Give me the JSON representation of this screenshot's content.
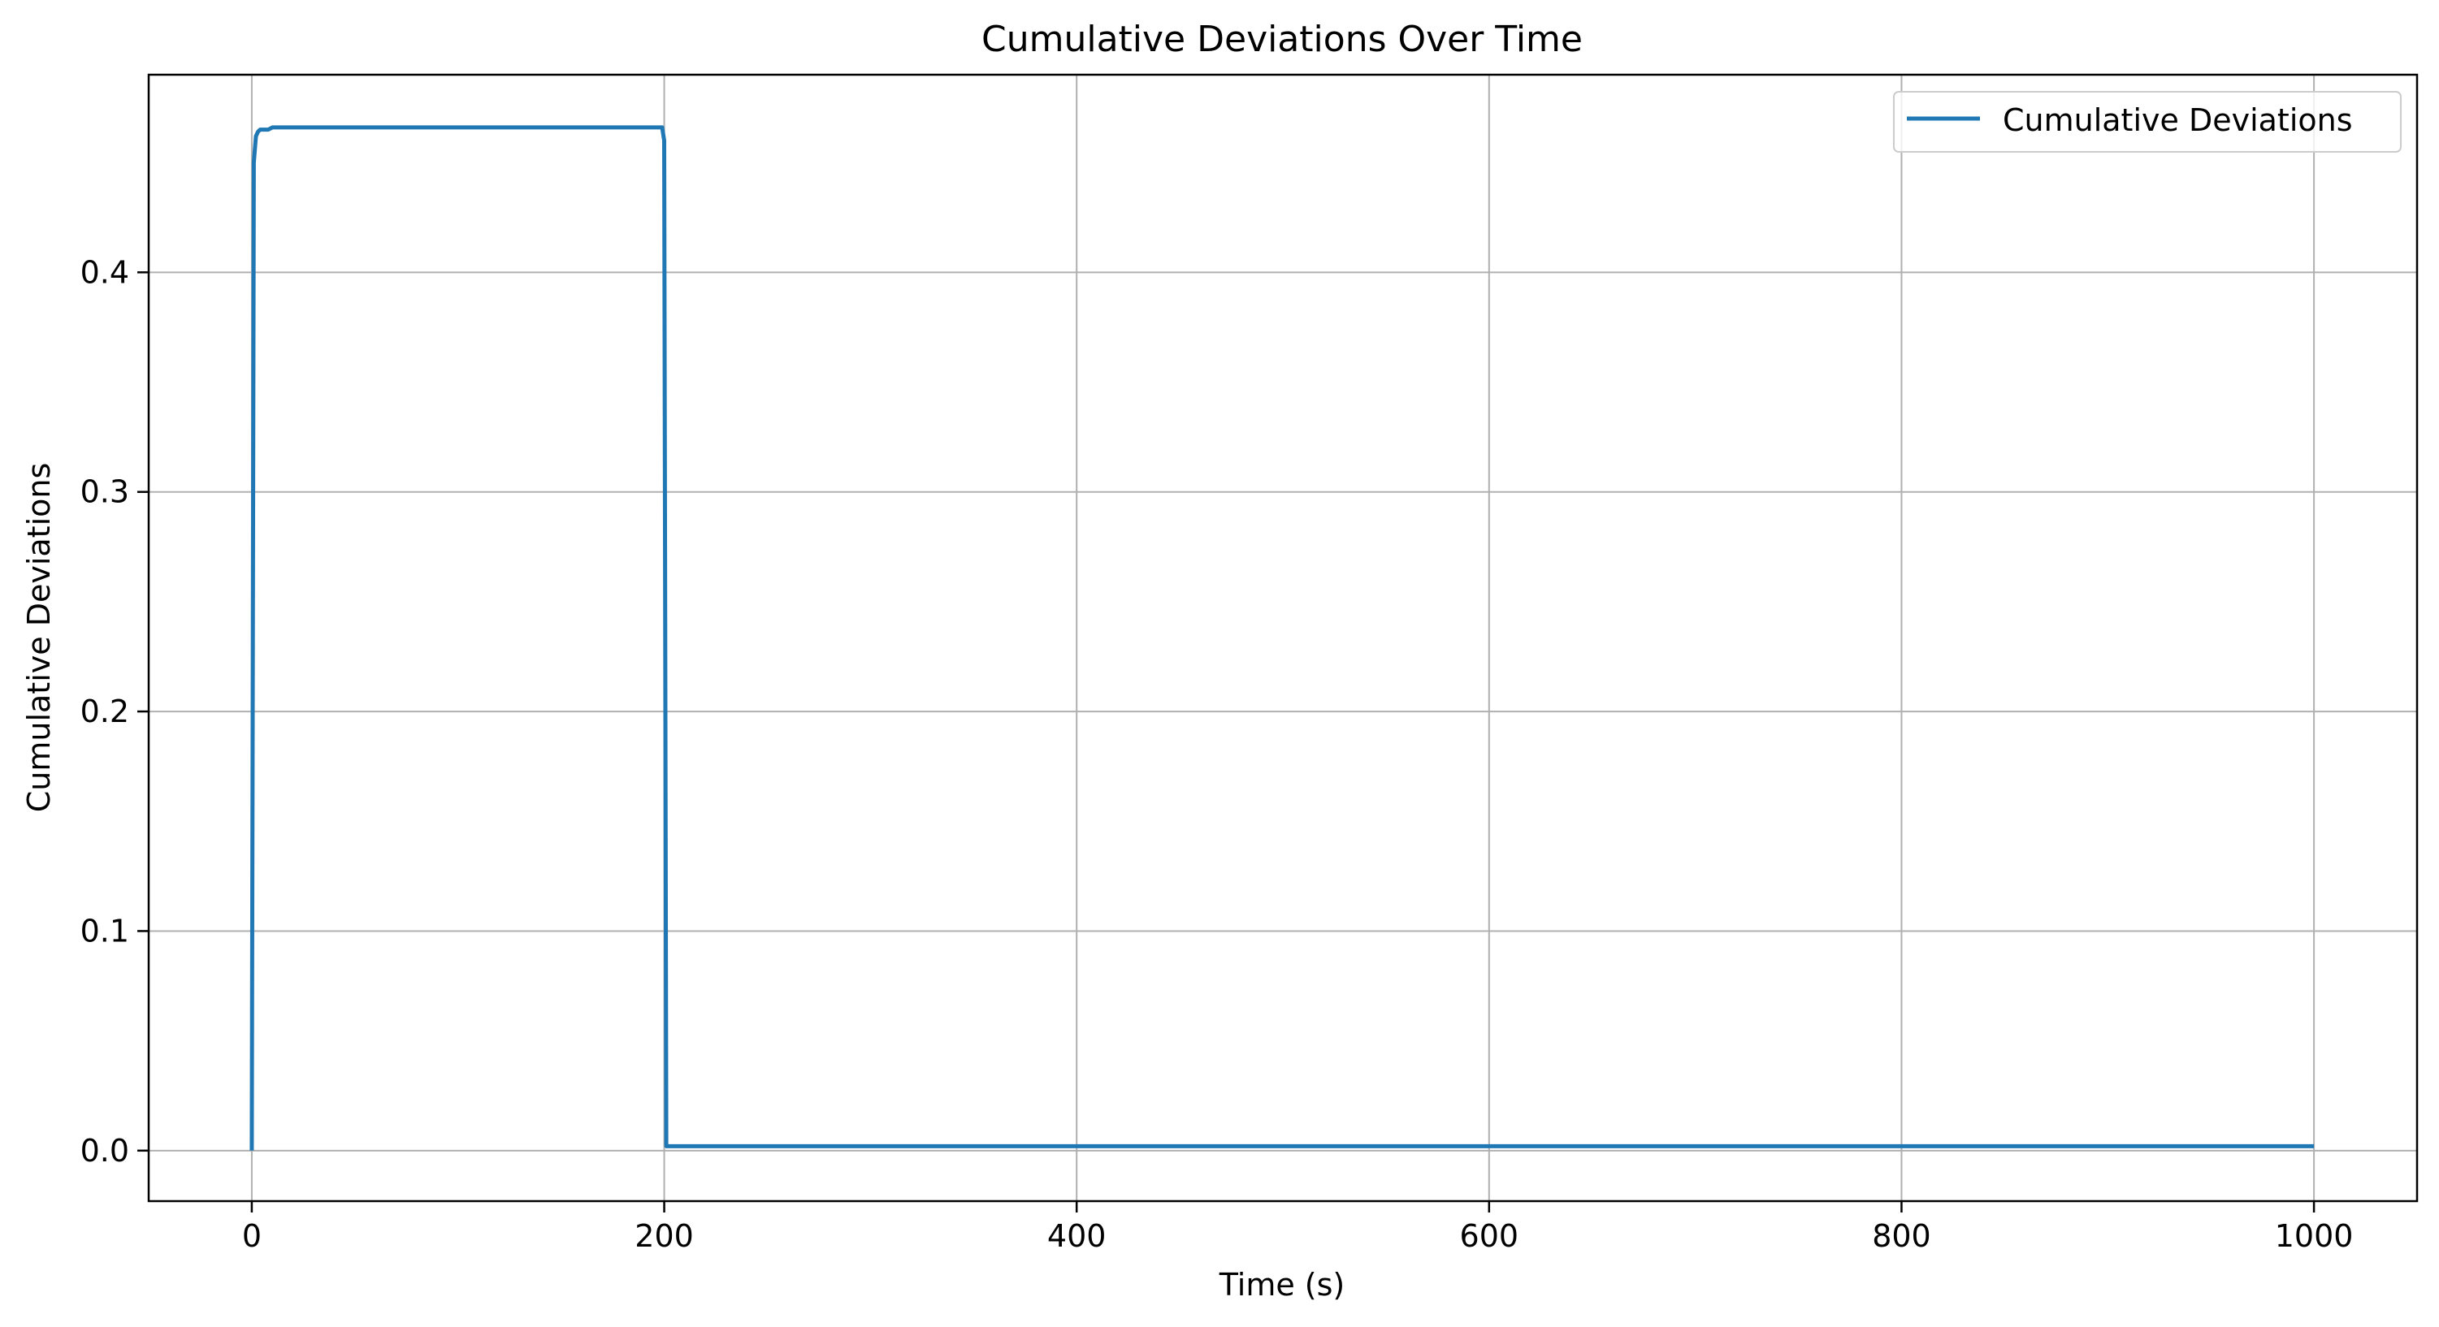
{
  "chart_data": {
    "type": "line",
    "title": "Cumulative Deviations Over Time",
    "xlabel": "Time (s)",
    "ylabel": "Cumulative Deviations",
    "xlim": [
      -50,
      1050
    ],
    "ylim": [
      -0.023,
      0.49
    ],
    "x_ticks": [
      0,
      200,
      400,
      600,
      800,
      1000
    ],
    "y_ticks": [
      0.0,
      0.1,
      0.2,
      0.3,
      0.4
    ],
    "x_tick_labels": [
      "0",
      "200",
      "400",
      "600",
      "800",
      "1000"
    ],
    "y_tick_labels": [
      "0.0",
      "0.1",
      "0.2",
      "0.3",
      "0.4"
    ],
    "grid": true,
    "legend_position": "top-right",
    "colors": {
      "series": "#1f77b4",
      "grid": "#b0b0b0",
      "axes": "#000000"
    },
    "series": [
      {
        "name": "Cumulative Deviations",
        "x": [
          0,
          1,
          2,
          3,
          4,
          5,
          6,
          8,
          10,
          12,
          20,
          50,
          100,
          150,
          199,
          200,
          201,
          202,
          300,
          400,
          500,
          600,
          700,
          800,
          900,
          1000
        ],
        "y": [
          0.0,
          0.45,
          0.462,
          0.464,
          0.465,
          0.465,
          0.465,
          0.465,
          0.466,
          0.466,
          0.466,
          0.466,
          0.466,
          0.466,
          0.466,
          0.46,
          0.002,
          0.002,
          0.002,
          0.002,
          0.002,
          0.002,
          0.002,
          0.002,
          0.002,
          0.002
        ]
      }
    ]
  }
}
